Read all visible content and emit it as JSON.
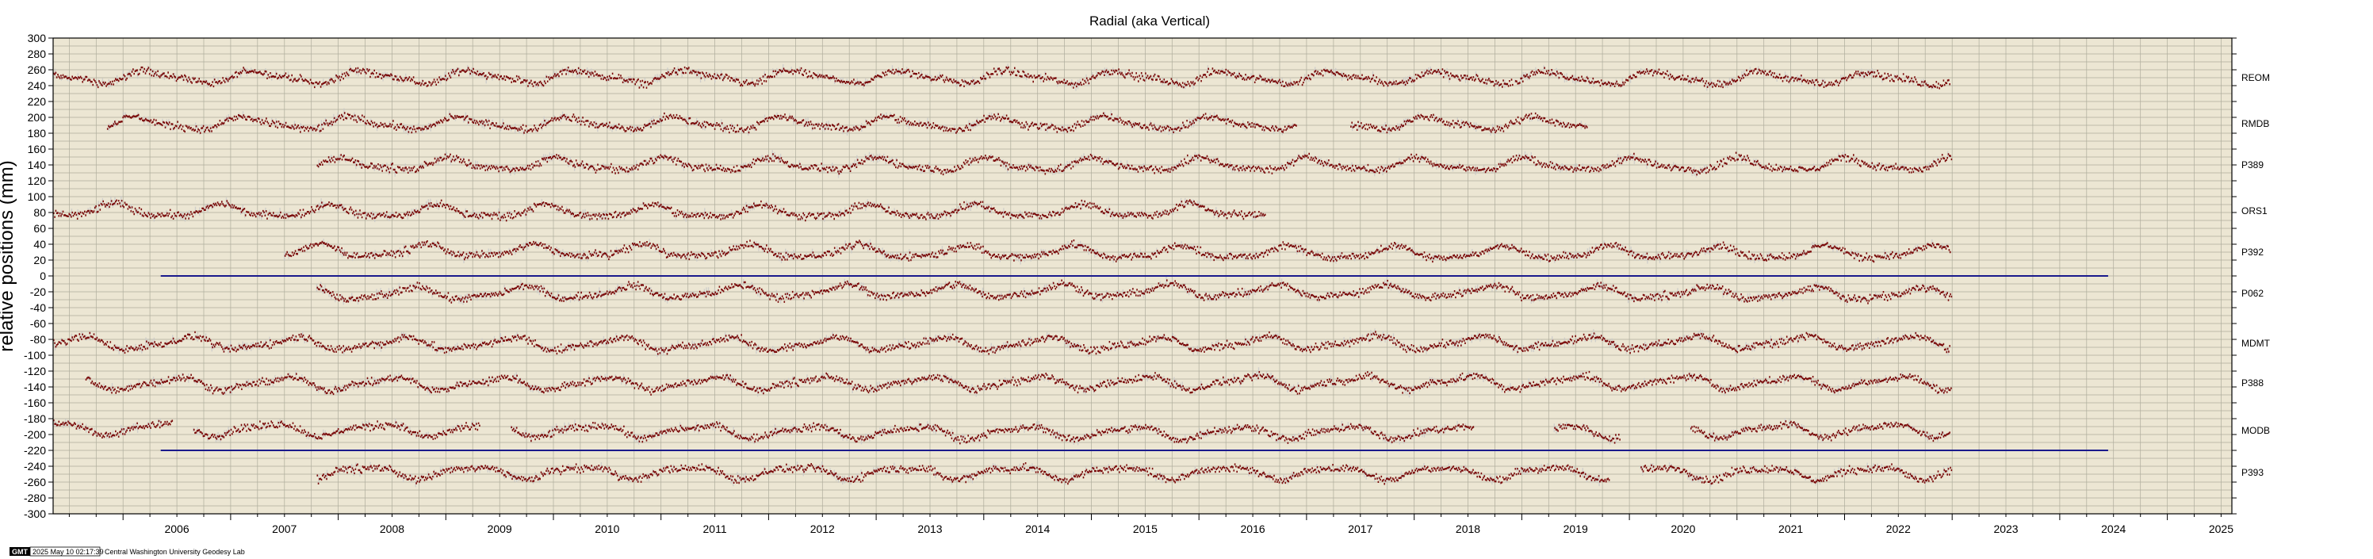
{
  "chart_data": {
    "type": "scatter",
    "title": "Radial (aka Vertical)",
    "ylabel": "relative positions (mm)",
    "xlabel": "",
    "ylim": [
      -300,
      300
    ],
    "xlim": [
      2005.35,
      2025.6
    ],
    "yticks": [
      300,
      280,
      260,
      240,
      220,
      200,
      180,
      160,
      140,
      120,
      100,
      80,
      60,
      40,
      20,
      0,
      -20,
      -40,
      -60,
      -80,
      -100,
      -120,
      -140,
      -160,
      -180,
      -200,
      -220,
      -240,
      -260,
      -280,
      -300
    ],
    "xticks": [
      "2006",
      "2007",
      "2008",
      "2009",
      "2010",
      "2011",
      "2012",
      "2013",
      "2014",
      "2015",
      "2016",
      "2017",
      "2018",
      "2019",
      "2020",
      "2021",
      "2022",
      "2023",
      "2024",
      "2025"
    ],
    "grid": true,
    "colors": {
      "background": "#ece6d3",
      "grid": "#9a9a8a",
      "points": "#7a0a0a",
      "uncertainty": "#c9c9c9",
      "reference_line": "#1a1a8c"
    },
    "series": [
      {
        "name": "REOM",
        "offset": 250,
        "start": 2005.35,
        "end": 2022.98,
        "gaps": [
          [
            2018.9,
            2018.92
          ]
        ]
      },
      {
        "name": "RMDB",
        "offset": 192,
        "start": 2005.85,
        "end": 2019.6,
        "gaps": [
          [
            2016.9,
            2017.4
          ]
        ]
      },
      {
        "name": "P389",
        "offset": 140,
        "start": 2007.8,
        "end": 2022.98,
        "gaps": []
      },
      {
        "name": "ORS1",
        "offset": 82,
        "start": 2005.35,
        "end": 2016.6,
        "gaps": []
      },
      {
        "name": "P392",
        "offset": 30,
        "start": 2007.5,
        "end": 2022.98,
        "gaps": []
      },
      {
        "name": "P062",
        "offset": -22,
        "start": 2007.8,
        "end": 2022.98,
        "gaps": []
      },
      {
        "name": "MDMT",
        "offset": -85,
        "start": 2005.35,
        "end": 2022.98,
        "gaps": []
      },
      {
        "name": "P388",
        "offset": -135,
        "start": 2005.65,
        "end": 2022.98,
        "gaps": []
      },
      {
        "name": "MODB",
        "offset": -195,
        "start": 2005.35,
        "end": 2022.98,
        "gaps": [
          [
            2006.45,
            2006.65
          ],
          [
            2009.3,
            2009.6
          ],
          [
            2018.55,
            2019.3
          ],
          [
            2019.9,
            2020.55
          ]
        ]
      },
      {
        "name": "P393",
        "offset": -248,
        "start": 2007.8,
        "end": 2022.98,
        "gaps": [
          [
            2019.8,
            2020.1
          ]
        ]
      }
    ],
    "reference_lines": [
      {
        "y": 0,
        "x_start": 2006.35,
        "x_end": 2024.45
      },
      {
        "y": -220,
        "x_start": 2006.35,
        "x_end": 2024.45
      }
    ]
  },
  "footer": {
    "logo": "GMT",
    "timestamp": "2025 May 10 02:17:39",
    "credit": "Central Washington University Geodesy Lab"
  }
}
